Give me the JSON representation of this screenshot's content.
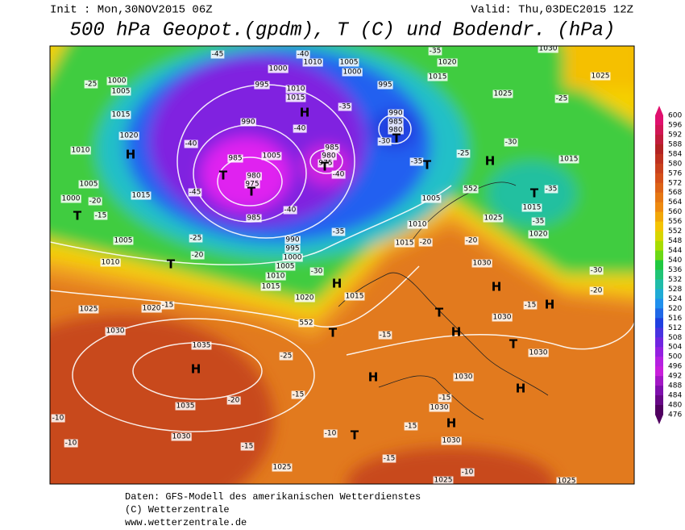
{
  "header": {
    "init": "Init : Mon,30NOV2015 06Z",
    "valid": "Valid: Thu,03DEC2015 12Z",
    "title": "500 hPa Geopot.(gpdm), T (C) und Bodendr. (hPa)"
  },
  "map": {
    "labels": [
      "1000",
      "1005",
      "1015",
      "1020",
      "1010",
      "1005",
      "1000",
      "1015",
      "1005",
      "1010",
      "1025",
      "1020",
      "1030",
      "1035",
      "1035",
      "1030",
      "1025",
      "1025",
      "1025",
      "1030",
      "1030",
      "1030",
      "1030",
      "1030",
      "1030",
      "1025",
      "1015",
      "1010",
      "1005",
      "1020",
      "1015",
      "1015",
      "1010",
      "1005",
      "1000",
      "995",
      "990",
      "985",
      "975",
      "980",
      "985",
      "990",
      "995",
      "1000",
      "1010",
      "1005",
      "1000",
      "1010",
      "1015",
      "995",
      "990",
      "985",
      "980",
      "985",
      "980",
      "975",
      "1005",
      "1020",
      "1015",
      "1025",
      "1015",
      "1015",
      "1020",
      "1030",
      "1025",
      "-45",
      "-40",
      "-35",
      "-25",
      "-40",
      "-45",
      "-40",
      "-35",
      "-25",
      "-20",
      "-30",
      "-20",
      "-20",
      "-25",
      "-35",
      "-30",
      "-35",
      "-35",
      "-25",
      "-30",
      "-20",
      "-15",
      "-15",
      "-15",
      "-25",
      "-20",
      "-15",
      "-15",
      "-10",
      "-15",
      "-15",
      "-15",
      "-10",
      "-15",
      "-10",
      "-10",
      "-35",
      "-40",
      "-40",
      "-30",
      "-20",
      "552",
      "552"
    ],
    "centers": [
      "H",
      "H",
      "T",
      "T",
      "T",
      "T",
      "H",
      "T",
      "H",
      "H",
      "T",
      "H",
      "H",
      "H",
      "T",
      "H",
      "H",
      "T",
      "T",
      "H",
      "T",
      "T",
      "T"
    ]
  },
  "legend": {
    "labels": [
      "600",
      "596",
      "592",
      "588",
      "584",
      "580",
      "576",
      "572",
      "568",
      "564",
      "560",
      "556",
      "552",
      "548",
      "544",
      "540",
      "536",
      "532",
      "528",
      "524",
      "520",
      "516",
      "512",
      "508",
      "504",
      "500",
      "496",
      "492",
      "488",
      "484",
      "480",
      "476"
    ]
  },
  "footer": {
    "lines": [
      "Daten: GFS-Modell des amerikanischen Wetterdienstes",
      "(C) Wetterzentrale",
      "www.wetterzentrale.de"
    ]
  }
}
